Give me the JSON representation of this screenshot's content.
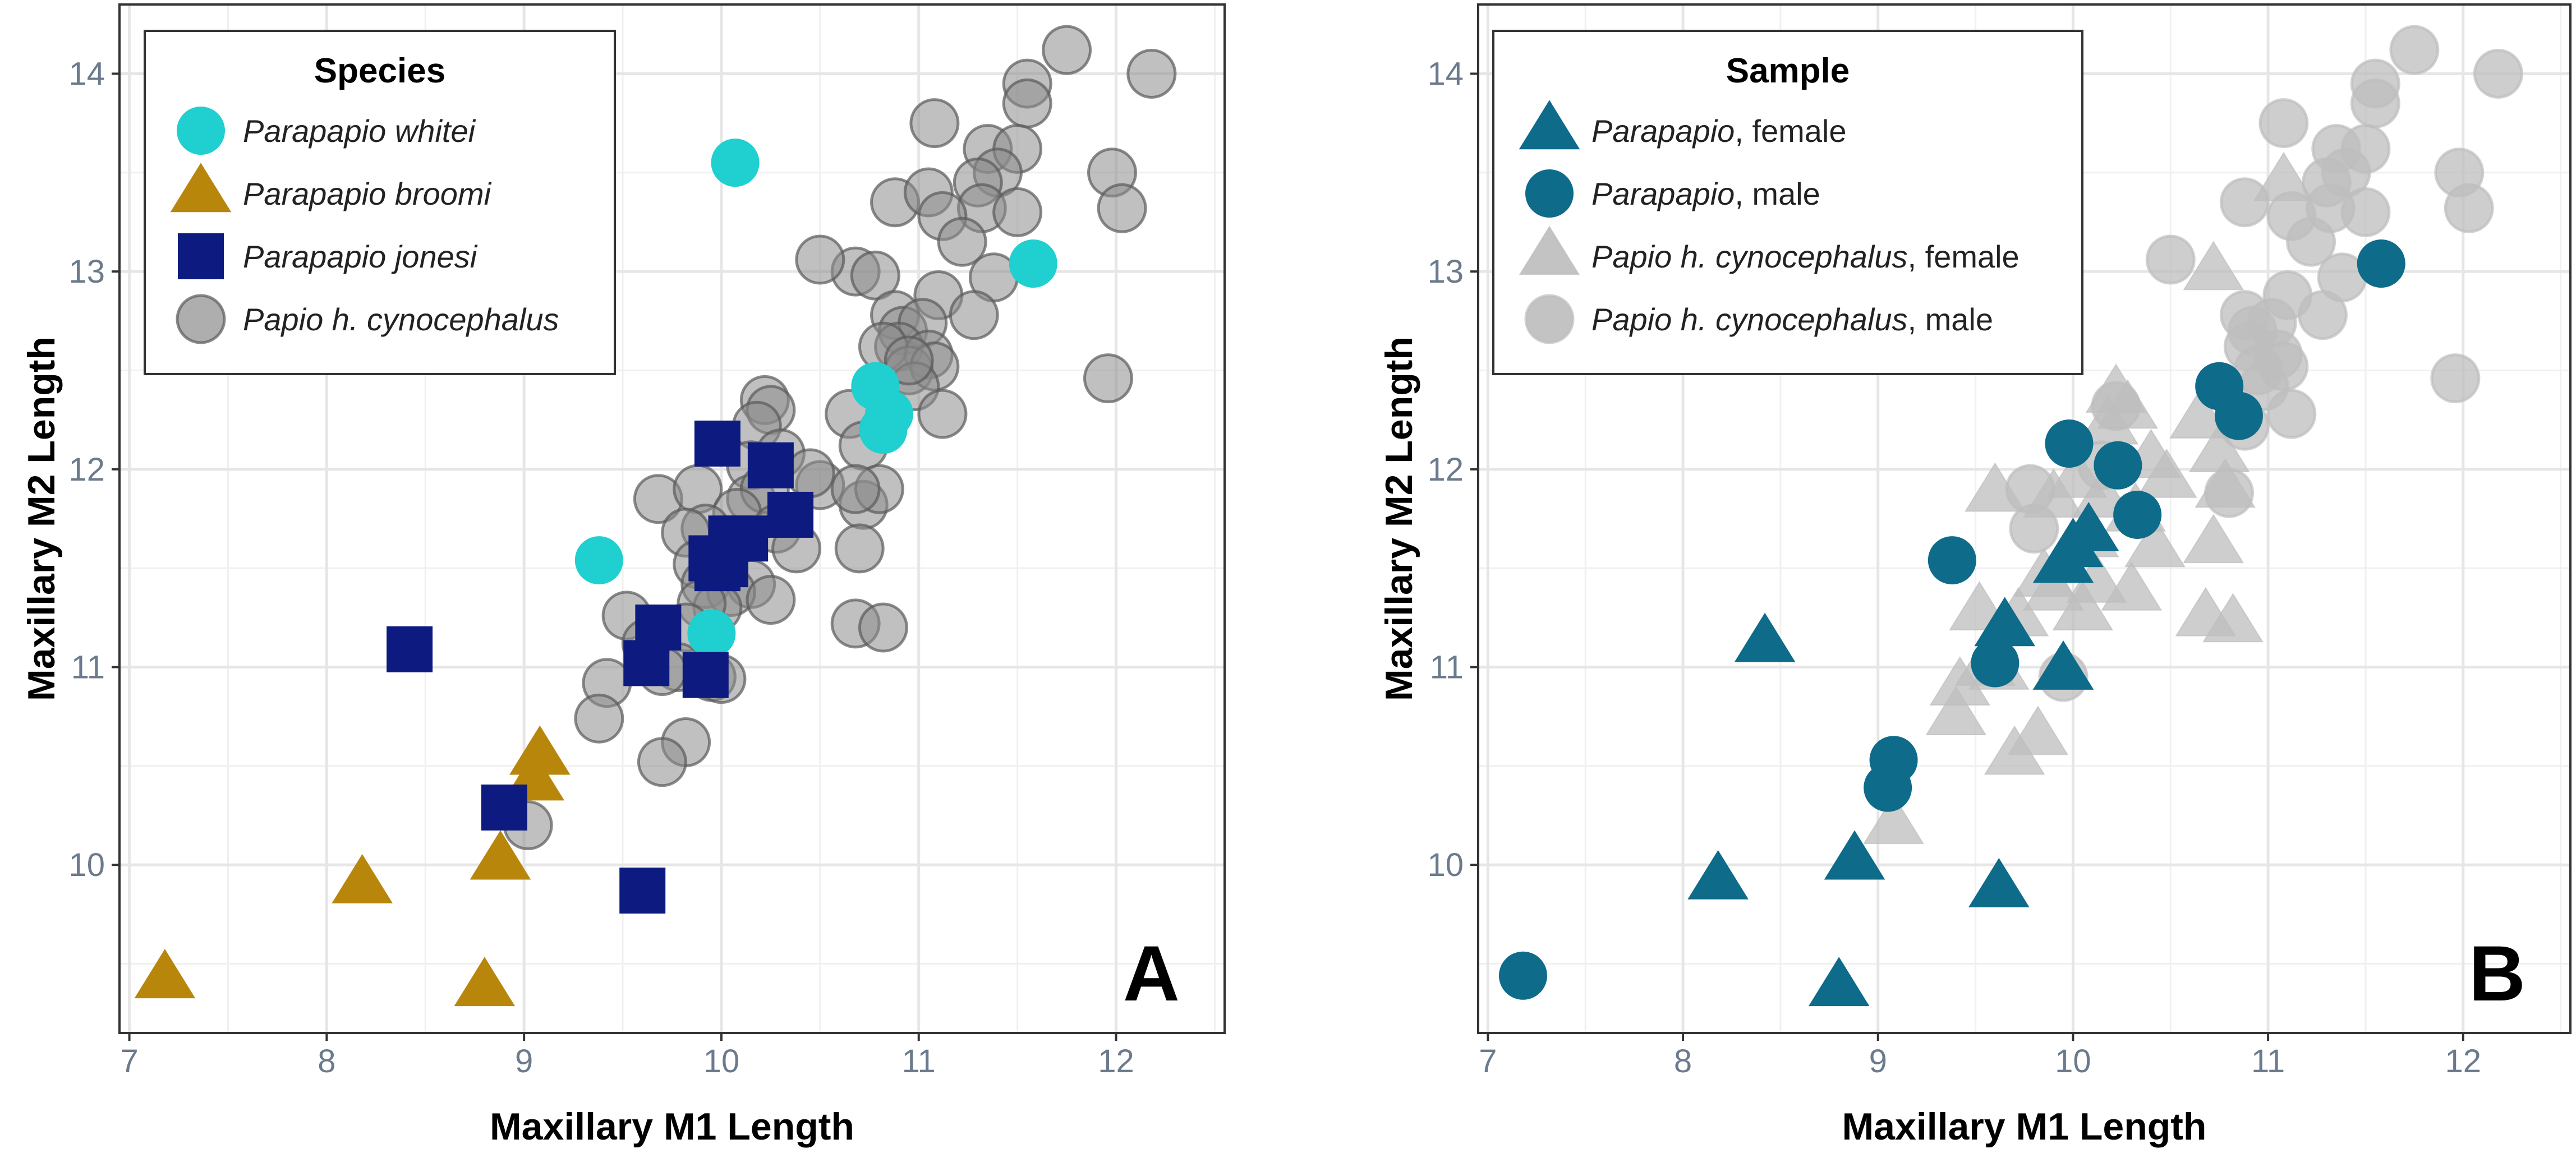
{
  "chart_data": [
    {
      "type": "scatter",
      "panel_label": "A",
      "xlabel": "Maxillary M1 Length",
      "ylabel": "Maxillary M2 Length",
      "xlim": [
        6.95,
        12.55
      ],
      "ylim": [
        9.15,
        14.35
      ],
      "xticks": [
        7,
        8,
        9,
        10,
        11,
        12
      ],
      "yticks": [
        10,
        11,
        12,
        13,
        14
      ],
      "grid": true,
      "legend": {
        "title": "Species",
        "position": "top-left",
        "entries": [
          {
            "label": "Parapapio whitei",
            "italic_part": "Parapapio whitei",
            "suffix": "",
            "series": "Parapapio whitei"
          },
          {
            "label": "Parapapio broomi",
            "italic_part": "Parapapio broomi",
            "suffix": "",
            "series": "Parapapio broomi"
          },
          {
            "label": "Parapapio jonesi",
            "italic_part": "Parapapio jonesi",
            "suffix": "",
            "series": "Parapapio jonesi"
          },
          {
            "label": "Papio h. cynocephalus",
            "italic_part": "Papio h. cynocephalus",
            "suffix": "",
            "series": "Papio h. cynocephalus"
          }
        ]
      },
      "series": [
        {
          "name": "Papio h. cynocephalus",
          "marker": "circle",
          "color": "#8c8c8c",
          "opacity": 0.55,
          "stroke": "#5a5a5a",
          "points": [
            [
              11.75,
              14.12
            ],
            [
              12.18,
              14.0
            ],
            [
              11.55,
              13.95
            ],
            [
              11.55,
              13.85
            ],
            [
              10.68,
              13.0
            ],
            [
              11.08,
              13.75
            ],
            [
              11.98,
              13.5
            ],
            [
              11.35,
              13.62
            ],
            [
              11.5,
              13.62
            ],
            [
              10.88,
              13.35
            ],
            [
              11.05,
              13.4
            ],
            [
              11.4,
              13.5
            ],
            [
              11.3,
              13.45
            ],
            [
              11.32,
              13.32
            ],
            [
              11.5,
              13.3
            ],
            [
              12.03,
              13.32
            ],
            [
              11.12,
              13.28
            ],
            [
              11.22,
              13.15
            ],
            [
              10.5,
              13.06
            ],
            [
              11.38,
              12.97
            ],
            [
              10.78,
              12.98
            ],
            [
              11.1,
              12.88
            ],
            [
              10.88,
              12.78
            ],
            [
              10.92,
              12.7
            ],
            [
              11.02,
              12.74
            ],
            [
              11.28,
              12.78
            ],
            [
              10.9,
              12.62
            ],
            [
              11.05,
              12.58
            ],
            [
              10.82,
              12.62
            ],
            [
              10.95,
              12.5
            ],
            [
              11.08,
              12.52
            ],
            [
              10.98,
              12.42
            ],
            [
              11.12,
              12.28
            ],
            [
              11.96,
              12.46
            ],
            [
              10.95,
              12.55
            ],
            [
              10.65,
              12.28
            ],
            [
              10.22,
              12.35
            ],
            [
              10.25,
              12.3
            ],
            [
              10.72,
              12.12
            ],
            [
              10.18,
              12.22
            ],
            [
              10.15,
              12.02
            ],
            [
              10.3,
              12.08
            ],
            [
              10.5,
              11.92
            ],
            [
              10.45,
              11.98
            ],
            [
              10.72,
              11.82
            ],
            [
              10.8,
              11.9
            ],
            [
              10.68,
              11.9
            ],
            [
              10.15,
              11.85
            ],
            [
              10.22,
              11.9
            ],
            [
              9.68,
              11.85
            ],
            [
              9.88,
              11.9
            ],
            [
              10.08,
              11.78
            ],
            [
              10.28,
              11.7
            ],
            [
              9.92,
              11.7
            ],
            [
              9.82,
              11.68
            ],
            [
              10.38,
              11.6
            ],
            [
              10.7,
              11.6
            ],
            [
              9.88,
              11.52
            ],
            [
              9.92,
              11.42
            ],
            [
              10.15,
              11.42
            ],
            [
              10.05,
              11.38
            ],
            [
              10.25,
              11.34
            ],
            [
              9.98,
              11.3
            ],
            [
              9.9,
              11.32
            ],
            [
              9.52,
              11.26
            ],
            [
              9.82,
              11.2
            ],
            [
              9.62,
              11.12
            ],
            [
              10.68,
              11.22
            ],
            [
              10.82,
              11.2
            ],
            [
              9.78,
              11.0
            ],
            [
              9.7,
              10.98
            ],
            [
              9.95,
              10.95
            ],
            [
              10.0,
              10.94
            ],
            [
              9.42,
              10.92
            ],
            [
              9.38,
              10.74
            ],
            [
              9.82,
              10.62
            ],
            [
              9.7,
              10.52
            ],
            [
              9.02,
              10.2
            ]
          ]
        },
        {
          "name": "Parapapio whitei",
          "marker": "circle",
          "color": "#20cfcf",
          "opacity": 1.0,
          "stroke": "#20cfcf",
          "points": [
            [
              10.07,
              13.55
            ],
            [
              11.58,
              13.04
            ],
            [
              10.78,
              12.42
            ],
            [
              10.85,
              12.28
            ],
            [
              10.82,
              12.2
            ],
            [
              9.38,
              11.54
            ],
            [
              9.95,
              11.17
            ]
          ]
        },
        {
          "name": "Parapapio broomi",
          "marker": "triangle",
          "color": "#b8860b",
          "opacity": 1.0,
          "stroke": "#b8860b",
          "points": [
            [
              9.08,
              10.55
            ],
            [
              9.05,
              10.42
            ],
            [
              8.88,
              10.02
            ],
            [
              8.18,
              9.9
            ],
            [
              7.18,
              9.42
            ],
            [
              8.8,
              9.38
            ]
          ]
        },
        {
          "name": "Parapapio jonesi",
          "marker": "square",
          "color": "#0d1a80",
          "opacity": 1.0,
          "stroke": "#0d1a80",
          "points": [
            [
              9.98,
              12.13
            ],
            [
              10.25,
              12.02
            ],
            [
              10.35,
              11.77
            ],
            [
              10.05,
              11.65
            ],
            [
              10.12,
              11.65
            ],
            [
              9.95,
              11.55
            ],
            [
              10.02,
              11.52
            ],
            [
              9.98,
              11.5
            ],
            [
              9.68,
              11.2
            ],
            [
              9.62,
              11.02
            ],
            [
              9.92,
              10.96
            ],
            [
              8.42,
              11.09
            ],
            [
              8.9,
              10.29
            ],
            [
              9.6,
              9.87
            ]
          ]
        }
      ]
    },
    {
      "type": "scatter",
      "panel_label": "B",
      "xlabel": "Maxillary M1 Length",
      "ylabel": "Maxillary M2 Length",
      "xlim": [
        6.95,
        12.55
      ],
      "ylim": [
        9.15,
        14.35
      ],
      "xticks": [
        7,
        8,
        9,
        10,
        11,
        12
      ],
      "yticks": [
        10,
        11,
        12,
        13,
        14
      ],
      "grid": true,
      "legend": {
        "title": "Sample",
        "position": "top-left",
        "entries": [
          {
            "label": "Parapapio, female",
            "italic_part": "Parapapio",
            "suffix": ", female",
            "series": "Parapapio, female"
          },
          {
            "label": "Parapapio, male",
            "italic_part": "Parapapio",
            "suffix": ", male",
            "series": "Parapapio, male"
          },
          {
            "label": "Papio h. cynocephalus, female",
            "italic_part": "Papio h. cynocephalus",
            "suffix": ", female",
            "series": "Papio h. cynocephalus, female"
          },
          {
            "label": "Papio h. cynocephalus, male",
            "italic_part": "Papio h. cynocephalus",
            "suffix": ", male",
            "series": "Papio h. cynocephalus, male"
          }
        ]
      },
      "series": [
        {
          "name": "Papio h. cynocephalus, female",
          "marker": "triangle",
          "color": "#bdbdbd",
          "opacity": 0.75,
          "stroke": "#bdbdbd",
          "points": [
            [
              11.08,
              13.45
            ],
            [
              10.72,
              13.0
            ],
            [
              10.22,
              12.38
            ],
            [
              10.28,
              12.3
            ],
            [
              10.18,
              12.22
            ],
            [
              10.65,
              12.25
            ],
            [
              10.75,
              12.08
            ],
            [
              10.4,
              12.05
            ],
            [
              10.48,
              11.95
            ],
            [
              10.78,
              11.9
            ],
            [
              9.6,
              11.88
            ],
            [
              9.9,
              11.85
            ],
            [
              10.02,
              11.95
            ],
            [
              10.15,
              11.85
            ],
            [
              10.32,
              11.78
            ],
            [
              10.72,
              11.62
            ],
            [
              10.08,
              11.65
            ],
            [
              10.42,
              11.6
            ],
            [
              9.85,
              11.45
            ],
            [
              9.9,
              11.38
            ],
            [
              10.12,
              11.42
            ],
            [
              10.3,
              11.38
            ],
            [
              9.52,
              11.28
            ],
            [
              9.72,
              11.25
            ],
            [
              10.68,
              11.25
            ],
            [
              10.82,
              11.22
            ],
            [
              10.05,
              11.28
            ],
            [
              9.55,
              11.0
            ],
            [
              9.62,
              10.98
            ],
            [
              9.42,
              10.9
            ],
            [
              9.4,
              10.75
            ],
            [
              9.82,
              10.65
            ],
            [
              9.7,
              10.55
            ],
            [
              9.08,
              10.2
            ]
          ]
        },
        {
          "name": "Papio h. cynocephalus, male",
          "marker": "circle",
          "color": "#bdbdbd",
          "opacity": 0.75,
          "stroke": "#bdbdbd",
          "points": [
            [
              11.75,
              14.12
            ],
            [
              12.18,
              14.0
            ],
            [
              11.55,
              13.95
            ],
            [
              11.55,
              13.85
            ],
            [
              11.08,
              13.75
            ],
            [
              11.98,
              13.5
            ],
            [
              11.35,
              13.62
            ],
            [
              11.5,
              13.62
            ],
            [
              10.88,
              13.35
            ],
            [
              11.4,
              13.5
            ],
            [
              11.3,
              13.45
            ],
            [
              11.32,
              13.32
            ],
            [
              11.5,
              13.3
            ],
            [
              12.03,
              13.32
            ],
            [
              11.12,
              13.28
            ],
            [
              11.22,
              13.15
            ],
            [
              10.5,
              13.06
            ],
            [
              11.38,
              12.97
            ],
            [
              11.1,
              12.88
            ],
            [
              10.88,
              12.78
            ],
            [
              10.92,
              12.7
            ],
            [
              11.02,
              12.74
            ],
            [
              11.28,
              12.78
            ],
            [
              10.9,
              12.62
            ],
            [
              11.05,
              12.58
            ],
            [
              10.95,
              12.5
            ],
            [
              11.08,
              12.52
            ],
            [
              10.98,
              12.42
            ],
            [
              11.12,
              12.28
            ],
            [
              11.96,
              12.46
            ],
            [
              10.88,
              12.22
            ],
            [
              10.22,
              12.32
            ],
            [
              10.15,
              12.02
            ],
            [
              9.78,
              11.9
            ],
            [
              9.8,
              11.7
            ],
            [
              10.8,
              11.88
            ],
            [
              9.95,
              10.95
            ]
          ]
        },
        {
          "name": "Parapapio, female",
          "marker": "triangle",
          "color": "#0e6b8a",
          "opacity": 1.0,
          "stroke": "#0e6b8a",
          "points": [
            [
              10.08,
              11.68
            ],
            [
              10.0,
              11.6
            ],
            [
              9.95,
              11.52
            ],
            [
              9.65,
              11.2
            ],
            [
              9.95,
              10.98
            ],
            [
              8.42,
              11.12
            ],
            [
              8.88,
              10.02
            ],
            [
              8.18,
              9.92
            ],
            [
              9.62,
              9.88
            ],
            [
              8.8,
              9.38
            ]
          ]
        },
        {
          "name": "Parapapio, male",
          "marker": "circle",
          "color": "#0e6b8a",
          "opacity": 1.0,
          "stroke": "#0e6b8a",
          "points": [
            [
              11.58,
              13.04
            ],
            [
              10.75,
              12.42
            ],
            [
              10.85,
              12.27
            ],
            [
              9.98,
              12.13
            ],
            [
              10.23,
              12.02
            ],
            [
              10.33,
              11.77
            ],
            [
              9.38,
              11.54
            ],
            [
              9.6,
              11.02
            ],
            [
              9.08,
              10.53
            ],
            [
              9.05,
              10.39
            ],
            [
              7.18,
              9.44
            ]
          ]
        }
      ]
    }
  ]
}
